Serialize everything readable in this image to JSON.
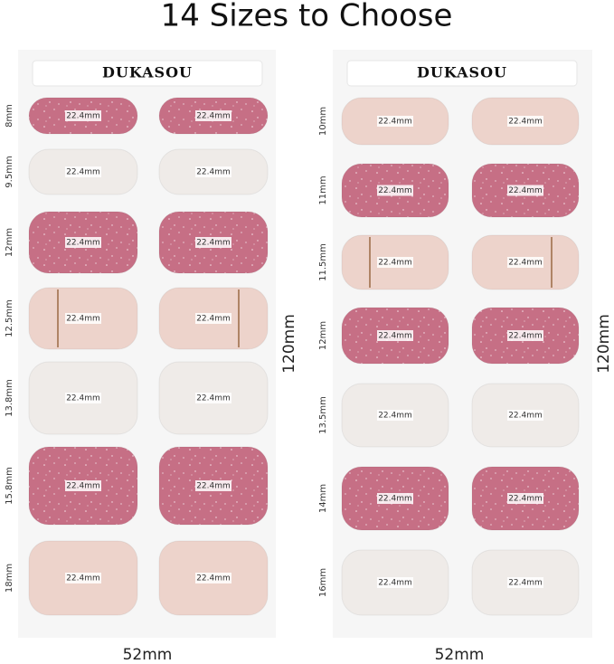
{
  "title": "14 Sizes to Choose",
  "panels": [
    {
      "brand": "DUKASOU",
      "height_label": "120mm",
      "width_label": "52mm",
      "rows": [
        {
          "size": "8mm",
          "labels": [
            "22.4mm",
            "22.4mm"
          ]
        },
        {
          "size": "9.5mm",
          "labels": [
            "22.4mm",
            "22.4mm"
          ]
        },
        {
          "size": "12mm",
          "labels": [
            "22.4mm",
            "22.4mm"
          ]
        },
        {
          "size": "12.5mm",
          "labels": [
            "22.4mm",
            "22.4mm"
          ]
        },
        {
          "size": "13.8mm",
          "labels": [
            "22.4mm",
            "22.4mm"
          ]
        },
        {
          "size": "15.8mm",
          "labels": [
            "22.4mm",
            "22.4mm"
          ]
        },
        {
          "size": "18mm",
          "labels": [
            "22.4mm",
            "22.4mm"
          ]
        }
      ]
    },
    {
      "brand": "DUKASOU",
      "height_label": "120mm",
      "width_label": "52mm",
      "rows": [
        {
          "size": "10mm",
          "labels": [
            "22.4mm",
            "22.4mm"
          ]
        },
        {
          "size": "11mm",
          "labels": [
            "22.4mm",
            "22.4mm"
          ]
        },
        {
          "size": "11.5mm",
          "labels": [
            "22.4mm",
            "22.4mm"
          ]
        },
        {
          "size": "12mm",
          "labels": [
            "22.4mm",
            "22.4mm"
          ]
        },
        {
          "size": "13.5mm",
          "labels": [
            "22.4mm",
            "22.4mm"
          ]
        },
        {
          "size": "14mm",
          "labels": [
            "22.4mm",
            "22.4mm"
          ]
        },
        {
          "size": "16mm",
          "labels": [
            "22.4mm",
            "22.4mm"
          ]
        }
      ]
    }
  ]
}
